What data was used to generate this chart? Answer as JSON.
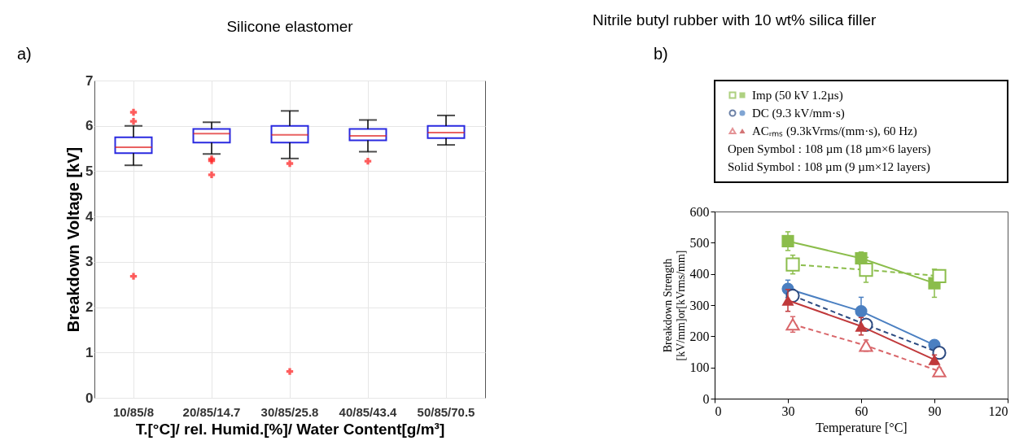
{
  "chart_data": [
    {
      "type": "box",
      "title": "Silicone elastomer",
      "xlabel": "T.[°C]/ rel. Humid.[%]/ Water Content[g/m³]",
      "ylabel": "Breakdown Voltage [kV]",
      "annotations": [
        "a)"
      ],
      "categories": [
        "10/85/8",
        "20/85/14.7",
        "30/85/25.8",
        "40/85/43.4",
        "50/85/70.5"
      ],
      "ylim": [
        0,
        7
      ],
      "yticks": [
        0,
        1,
        2,
        3,
        4,
        5,
        6,
        7
      ],
      "grid": true,
      "marker": "cross",
      "boxes": [
        {
          "low": 5.13,
          "q1": 5.4,
          "median": 5.53,
          "q3": 5.75,
          "high": 6.0,
          "outliers": [
            6.3,
            6.1,
            2.68
          ]
        },
        {
          "low": 5.38,
          "q1": 5.63,
          "median": 5.83,
          "q3": 5.93,
          "high": 6.08,
          "outliers": [
            5.27,
            5.23,
            4.92
          ]
        },
        {
          "low": 5.28,
          "q1": 5.63,
          "median": 5.8,
          "q3": 6.0,
          "high": 6.33,
          "outliers": [
            5.17,
            0.58
          ]
        },
        {
          "low": 5.43,
          "q1": 5.68,
          "median": 5.78,
          "q3": 5.93,
          "high": 6.13,
          "outliers": [
            5.22
          ]
        },
        {
          "low": 5.58,
          "q1": 5.73,
          "median": 5.85,
          "q3": 6.0,
          "high": 6.23
        }
      ]
    },
    {
      "type": "line",
      "title": "Nitrile butyl rubber with 10 wt% silica filler",
      "xlabel": "Temperature [°C]",
      "ylabel": "Breakdown Strength\n[kV/mm]or[kVrms/mm]",
      "annotations": [
        "b)",
        "Open Symbol : 108 µm (18 µm×6 layers)",
        "Solid Symbol : 108 µm (9 µm×12 layers)"
      ],
      "xlim": [
        0,
        120
      ],
      "xticks": [
        0,
        30,
        60,
        90,
        120
      ],
      "ylim": [
        0,
        600
      ],
      "yticks": [
        0,
        100,
        200,
        300,
        400,
        500,
        600
      ],
      "grid": false,
      "legend": "top",
      "series": [
        {
          "name": "Imp (50 kV 1.2µs)",
          "color": "#8bbd4b",
          "marker": "square",
          "line_style": "solid",
          "x": [
            30,
            60,
            90
          ],
          "values": [
            505,
            450,
            370
          ],
          "errors": [
            30,
            20,
            45
          ]
        },
        {
          "color": "#8bbd4b",
          "marker": "square",
          "line_style": "dashed",
          "x": [
            32,
            62,
            92
          ],
          "values": [
            430,
            413,
            393
          ],
          "errors": [
            30,
            40,
            20
          ]
        },
        {
          "name": "DC (9.3 kV/mm·s)",
          "color": "#4a7fc1",
          "marker": "circle",
          "line_style": "solid",
          "x": [
            30,
            60,
            90
          ],
          "values": [
            352,
            280,
            172
          ],
          "errors": [
            28,
            45,
            10
          ]
        },
        {
          "color": "#2c4a80",
          "marker": "circle",
          "line_style": "dashed",
          "x": [
            32,
            62,
            92
          ],
          "values": [
            330,
            237,
            147
          ],
          "errors": [
            20,
            15,
            10
          ]
        },
        {
          "name": "ACᵣₘₛ (9.3kVrms/(mm·s), 60 Hz)",
          "color": "#c0393b",
          "marker": "triangle",
          "line_style": "solid",
          "x": [
            30,
            60,
            90
          ],
          "values": [
            315,
            232,
            125
          ],
          "errors": [
            35,
            28,
            15
          ]
        },
        {
          "color": "#d9666a",
          "marker": "triangle",
          "line_style": "dashed",
          "x": [
            32,
            62,
            92
          ],
          "values": [
            238,
            170,
            88
          ],
          "errors": [
            25,
            18,
            10
          ]
        }
      ]
    }
  ]
}
